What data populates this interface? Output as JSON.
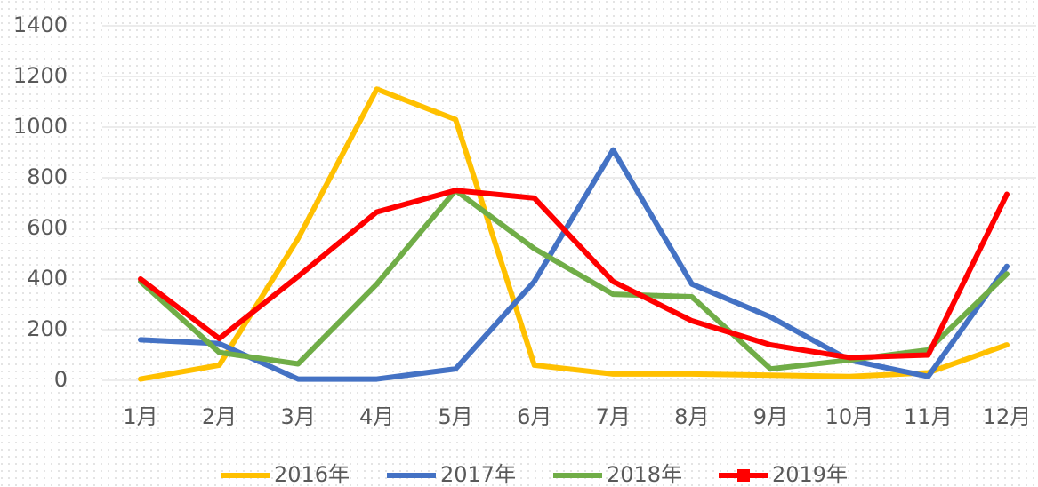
{
  "chart_data": {
    "type": "line",
    "categories": [
      "1月",
      "2月",
      "3月",
      "4月",
      "5月",
      "6月",
      "7月",
      "8月",
      "9月",
      "10月",
      "11月",
      "12月"
    ],
    "series": [
      {
        "name": "2016年",
        "color": "#ffc000",
        "values": [
          5,
          60,
          560,
          1150,
          1030,
          60,
          25,
          25,
          20,
          15,
          30,
          140
        ]
      },
      {
        "name": "2017年",
        "color": "#4472c4",
        "values": [
          160,
          145,
          5,
          5,
          45,
          390,
          910,
          380,
          250,
          80,
          15,
          450
        ]
      },
      {
        "name": "2018年",
        "color": "#70ad47",
        "values": [
          390,
          110,
          65,
          380,
          750,
          520,
          340,
          330,
          45,
          80,
          120,
          420
        ]
      },
      {
        "name": "2019年",
        "color": "#ff0000",
        "marker": "square",
        "values": [
          400,
          165,
          410,
          665,
          750,
          720,
          390,
          235,
          140,
          90,
          100,
          735
        ]
      }
    ],
    "ylim": [
      0,
      1400
    ],
    "yticks": [
      0,
      200,
      400,
      600,
      800,
      1000,
      1200,
      1400
    ],
    "grid": true,
    "legend": "bottom"
  }
}
